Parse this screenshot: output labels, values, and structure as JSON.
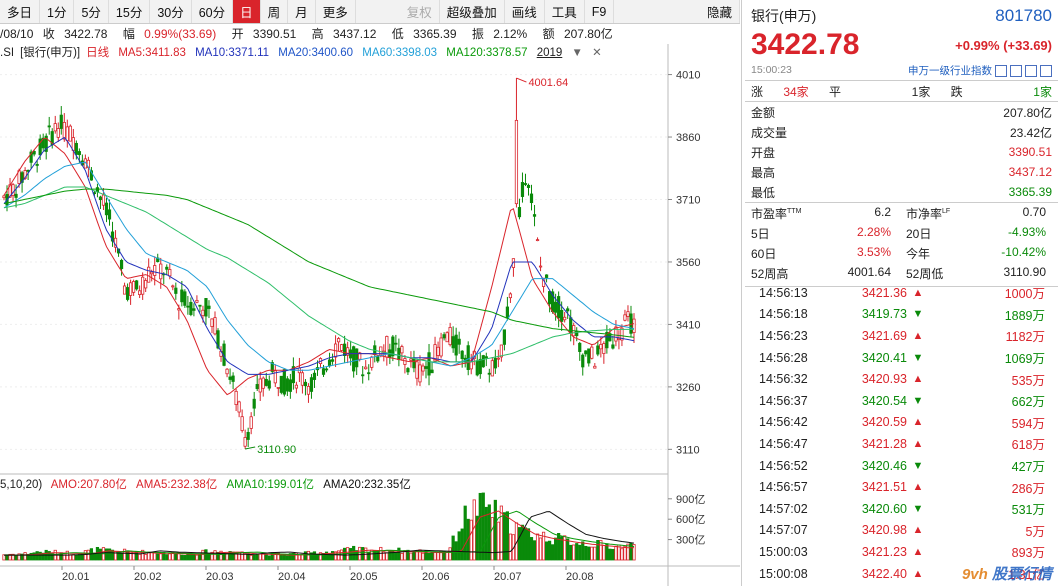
{
  "toolbar": {
    "items": [
      {
        "label": "多日",
        "active": false,
        "dim": false
      },
      {
        "label": "1分",
        "active": false,
        "dim": false
      },
      {
        "label": "5分",
        "active": false,
        "dim": false
      },
      {
        "label": "15分",
        "active": false,
        "dim": false
      },
      {
        "label": "30分",
        "active": false,
        "dim": false
      },
      {
        "label": "60分",
        "active": false,
        "dim": false
      },
      {
        "label": "日",
        "active": true,
        "dim": false
      },
      {
        "label": "周",
        "active": false,
        "dim": false
      },
      {
        "label": "月",
        "active": false,
        "dim": false
      },
      {
        "label": "更多",
        "active": false,
        "dim": false
      },
      {
        "label": "复权",
        "active": false,
        "dim": true
      },
      {
        "label": "超级叠加",
        "active": false,
        "dim": false
      },
      {
        "label": "画线",
        "active": false,
        "dim": false
      },
      {
        "label": "工具",
        "active": false,
        "dim": false
      },
      {
        "label": "F9",
        "active": false,
        "dim": false
      },
      {
        "label": "隐藏",
        "active": false,
        "dim": false
      }
    ]
  },
  "infobar": {
    "date": "/08/10",
    "close_label": "收",
    "close": "3422.78",
    "change_label": "幅",
    "change": "0.99%(33.69)",
    "open_label": "开",
    "open": "3390.51",
    "high_label": "高",
    "high": "3437.12",
    "low_label": "低",
    "low": "3365.39",
    "amp_label": "振",
    "amp": "2.12%",
    "amount_label": "额",
    "amount": "207.80亿"
  },
  "mabar": {
    "code": ".SI",
    "name": "[银行(申万)]",
    "period": "日线",
    "ma5": "MA5:3411.83",
    "ma10": "MA10:3371.11",
    "ma20": "MA20:3400.60",
    "ma60": "MA60:3398.03",
    "ma120": "MA120:3378.57",
    "range": "2019"
  },
  "volbar": {
    "params": "5,10,20)",
    "amo": "AMO:207.80亿",
    "ama5": "AMA5:232.38亿",
    "ama10": "AMA10:199.01亿",
    "ama20": "AMA20:232.35亿"
  },
  "colors": {
    "up": "#d9242b",
    "down": "#0a8a0a",
    "ma5": "#d9242b",
    "ma10": "#2233bb",
    "ma20": "#22a0d8",
    "ma60": "#2fbf6a",
    "ma120": "#0a9a0a",
    "ama20": "#111111"
  },
  "chart_data": {
    "type": "candlestick",
    "title": "",
    "y_ticks": [
      "4010",
      "3860",
      "3710",
      "3560",
      "3410",
      "3260",
      "3110"
    ],
    "y_tick_values": [
      4010,
      3860,
      3710,
      3560,
      3410,
      3260,
      3110
    ],
    "ylim": [
      3070,
      4045
    ],
    "vol_ticks": [
      "900亿",
      "600亿",
      "300亿"
    ],
    "vol_tick_values": [
      900,
      600,
      300
    ],
    "x_labels": [
      "20.01",
      "20.02",
      "20.03",
      "20.04",
      "20.05",
      "20.06",
      "20.07",
      "20.08"
    ],
    "annotations": [
      {
        "text": "4001.64",
        "value": 4001.64
      },
      {
        "text": "3110.90",
        "value": 3110.9
      }
    ],
    "anchors": [
      [
        3730,
        3700
      ],
      [
        3770,
        3720
      ],
      [
        3800,
        3800
      ],
      [
        3850,
        3830
      ],
      [
        3900,
        3880
      ],
      [
        3870,
        3860
      ],
      [
        3830,
        3800
      ],
      [
        3760,
        3700
      ],
      [
        3680,
        3620
      ],
      [
        3520,
        3480
      ],
      [
        3480,
        3500
      ],
      [
        3550,
        3540
      ],
      [
        3560,
        3520
      ],
      [
        3480,
        3460
      ],
      [
        3500,
        3420
      ],
      [
        3470,
        3440
      ],
      [
        3390,
        3370
      ],
      [
        3320,
        3230
      ],
      [
        3150,
        3130
      ],
      [
        3230,
        3270
      ],
      [
        3300,
        3280
      ],
      [
        3260,
        3280
      ],
      [
        3290,
        3290
      ],
      [
        3270,
        3260
      ],
      [
        3300,
        3340
      ],
      [
        3360,
        3380
      ],
      [
        3340,
        3320
      ],
      [
        3310,
        3300
      ],
      [
        3340,
        3360
      ],
      [
        3360,
        3350
      ],
      [
        3330,
        3310
      ],
      [
        3290,
        3300
      ],
      [
        3300,
        3350
      ],
      [
        3380,
        3390
      ],
      [
        3360,
        3340
      ],
      [
        3320,
        3320
      ],
      [
        3330,
        3290
      ],
      [
        3290,
        3320
      ],
      [
        3410,
        3700
      ],
      [
        3900,
        3700
      ],
      [
        3600,
        3500
      ],
      [
        3460,
        3450
      ],
      [
        3420,
        3460
      ],
      [
        3380,
        3300
      ],
      [
        3310,
        3340
      ],
      [
        3350,
        3380
      ],
      [
        3390,
        3410
      ],
      [
        3422.78,
        3422.78
      ]
    ],
    "ma_levels": {
      "ma5": [
        3720,
        3800,
        3860,
        3820,
        3740,
        3600,
        3520,
        3530,
        3500,
        3420,
        3300,
        3240,
        3280,
        3300,
        3300,
        3320,
        3350,
        3340,
        3340,
        3330,
        3320,
        3330,
        3310,
        3320,
        3500,
        3700,
        3520,
        3440,
        3380,
        3360,
        3400,
        3412
      ],
      "ma10": [
        3700,
        3760,
        3830,
        3860,
        3780,
        3640,
        3560,
        3540,
        3530,
        3500,
        3400,
        3320,
        3290,
        3290,
        3300,
        3310,
        3330,
        3340,
        3340,
        3340,
        3330,
        3330,
        3320,
        3320,
        3400,
        3560,
        3560,
        3480,
        3420,
        3380,
        3380,
        3371
      ],
      "ma20": [
        3690,
        3720,
        3760,
        3790,
        3800,
        3720,
        3640,
        3580,
        3560,
        3540,
        3500,
        3420,
        3360,
        3320,
        3300,
        3300,
        3310,
        3320,
        3330,
        3340,
        3330,
        3320,
        3310,
        3330,
        3360,
        3440,
        3520,
        3520,
        3480,
        3440,
        3410,
        3400
      ],
      "ma60": [
        3690,
        3700,
        3720,
        3740,
        3740,
        3720,
        3700,
        3680,
        3650,
        3620,
        3590,
        3570,
        3540,
        3510,
        3470,
        3430,
        3400,
        3370,
        3350,
        3340,
        3330,
        3320,
        3320,
        3320,
        3330,
        3340,
        3360,
        3380,
        3390,
        3395,
        3398,
        3398
      ],
      "ma120": [
        3700,
        3710,
        3720,
        3730,
        3735,
        3735,
        3730,
        3725,
        3720,
        3710,
        3690,
        3670,
        3650,
        3620,
        3590,
        3560,
        3540,
        3520,
        3500,
        3490,
        3480,
        3470,
        3460,
        3450,
        3440,
        3420,
        3410,
        3400,
        3395,
        3390,
        3385,
        3379
      ]
    },
    "volume_levels": [
      80,
      90,
      120,
      110,
      100,
      150,
      130,
      120,
      110,
      100,
      90,
      120,
      130,
      100,
      90,
      80,
      90,
      110,
      130,
      160,
      150,
      140,
      130,
      120,
      140,
      700,
      800,
      600,
      420,
      350,
      300,
      260,
      230,
      200,
      210
    ]
  },
  "quote": {
    "name": "银行(申万)",
    "code": "801780",
    "price": "3422.78",
    "change": "+0.99%",
    "change_abs": "(+33.69)",
    "time": "15:00:23",
    "index_name": "申万一级行业指数"
  },
  "breadth": {
    "up_label": "涨",
    "up": "34家",
    "flat_label": "平",
    "flat": "1家",
    "down_label": "跌",
    "down": "1家"
  },
  "stats": [
    {
      "label": "金额",
      "value": "207.80亿",
      "color": "default"
    },
    {
      "label": "成交量",
      "value": "23.42亿",
      "color": "default"
    },
    {
      "label": "开盘",
      "value": "3390.51",
      "color": "red"
    },
    {
      "label": "最高",
      "value": "3437.12",
      "color": "red"
    },
    {
      "label": "最低",
      "value": "3365.39",
      "color": "green"
    }
  ],
  "grid2": [
    {
      "l1": "市盈率",
      "s1": "TTM",
      "v1": "6.2",
      "c1": "default",
      "l2": "市净率",
      "s2": "LF",
      "v2": "0.70",
      "c2": "default"
    },
    {
      "l1": "5日",
      "s1": "",
      "v1": "2.28%",
      "c1": "red",
      "l2": "20日",
      "s2": "",
      "v2": "-4.93%",
      "c2": "green"
    },
    {
      "l1": "60日",
      "s1": "",
      "v1": "3.53%",
      "c1": "red",
      "l2": "今年",
      "s2": "",
      "v2": "-10.42%",
      "c2": "green"
    },
    {
      "l1": "52周高",
      "s1": "",
      "v1": "4001.64",
      "c1": "default",
      "l2": "52周低",
      "s2": "",
      "v2": "3110.90",
      "c2": "default"
    }
  ],
  "ticks": [
    {
      "time": "14:56:13",
      "price": "3421.36",
      "dir": "up",
      "vol": "1000万"
    },
    {
      "time": "14:56:18",
      "price": "3419.73",
      "dir": "down",
      "vol": "1889万"
    },
    {
      "time": "14:56:23",
      "price": "3421.69",
      "dir": "up",
      "vol": "1182万"
    },
    {
      "time": "14:56:28",
      "price": "3420.41",
      "dir": "down",
      "vol": "1069万"
    },
    {
      "time": "14:56:32",
      "price": "3420.93",
      "dir": "up",
      "vol": "535万"
    },
    {
      "time": "14:56:37",
      "price": "3420.54",
      "dir": "down",
      "vol": "662万"
    },
    {
      "time": "14:56:42",
      "price": "3420.59",
      "dir": "up",
      "vol": "594万"
    },
    {
      "time": "14:56:47",
      "price": "3421.28",
      "dir": "up",
      "vol": "618万"
    },
    {
      "time": "14:56:52",
      "price": "3420.46",
      "dir": "down",
      "vol": "427万"
    },
    {
      "time": "14:56:57",
      "price": "3421.51",
      "dir": "up",
      "vol": "286万"
    },
    {
      "time": "14:57:02",
      "price": "3420.60",
      "dir": "down",
      "vol": "531万"
    },
    {
      "time": "14:57:07",
      "price": "3420.98",
      "dir": "up",
      "vol": "5万"
    },
    {
      "time": "15:00:03",
      "price": "3421.23",
      "dir": "up",
      "vol": "893万"
    },
    {
      "time": "15:00:08",
      "price": "3422.40",
      "dir": "up",
      "vol": "1.31亿"
    }
  ],
  "watermark": "股票行情"
}
